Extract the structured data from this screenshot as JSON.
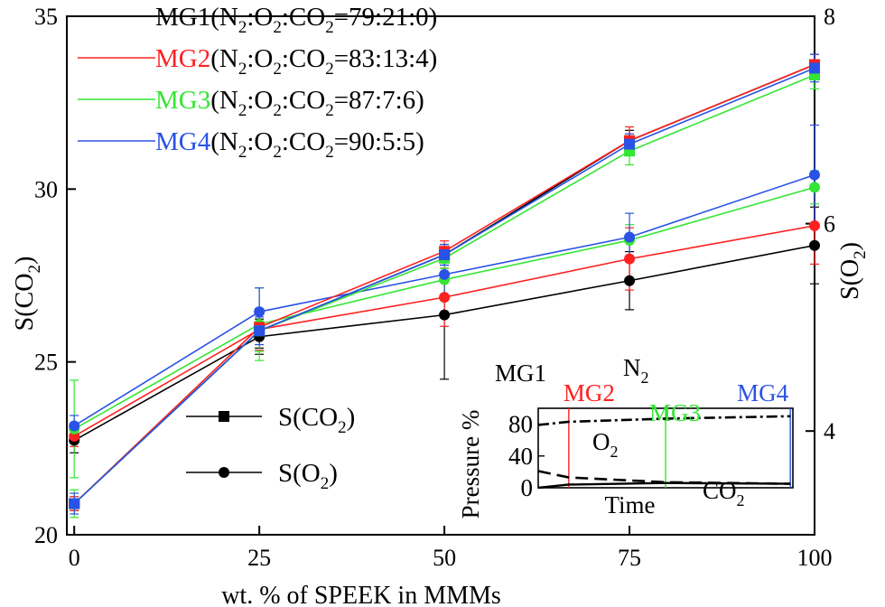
{
  "chart_data": {
    "type": "line",
    "x": [
      0,
      25,
      50,
      75,
      100
    ],
    "xlabel": "wt. % of SPEEK in MMMs",
    "xticks": [
      "0",
      "25",
      "50",
      "75",
      "100"
    ],
    "xlim": [
      -1,
      100
    ],
    "y_left": {
      "label": "S(CO",
      "label_sub": "2",
      "label_end": ")",
      "ylim": [
        20,
        35
      ],
      "ticks": [
        "20",
        "25",
        "30",
        "35"
      ]
    },
    "y_right": {
      "label": "S(O",
      "label_sub": "2",
      "label_end": ")",
      "ylim": [
        3.0,
        8.0
      ],
      "ticks": [
        "4",
        "6",
        "8"
      ]
    },
    "legend_groups": [
      {
        "name": "MG1",
        "rest": "(N",
        "s1": "2",
        "m1": ":O",
        "s2": "2",
        "m2": ":CO",
        "s3": "2",
        "end": "=79:21:0)",
        "color": "#000000"
      },
      {
        "name": "MG2",
        "rest": "(N",
        "s1": "2",
        "m1": ":O",
        "s2": "2",
        "m2": ":CO",
        "s3": "2",
        "end": "=83:13:4)",
        "color": "#ff2020"
      },
      {
        "name": "MG3",
        "rest": "(N",
        "s1": "2",
        "m1": ":O",
        "s2": "2",
        "m2": ":CO",
        "s3": "2",
        "end": "=87:7:6)",
        "color": "#33e633"
      },
      {
        "name": "MG4",
        "rest": "(N",
        "s1": "2",
        "m1": ":O",
        "s2": "2",
        "m2": ":CO",
        "s3": "2",
        "end": "=90:5:5)",
        "color": "#2a52e6"
      }
    ],
    "legend_markers": [
      {
        "label": "S(CO",
        "sub": "2",
        "end": ")",
        "marker": "square"
      },
      {
        "label": "S(O",
        "sub": "2",
        "end": ")",
        "marker": "circle"
      }
    ],
    "series_co2": [
      {
        "group": "MG1",
        "axis": "left",
        "color": "#000000",
        "values": [
          20.9,
          25.9,
          28.1,
          31.4,
          33.6
        ],
        "err": [
          0.2,
          0.5,
          0.3,
          0.3,
          0.3
        ]
      },
      {
        "group": "MG2",
        "axis": "left",
        "color": "#ff2020",
        "values": [
          20.9,
          26.0,
          28.2,
          31.4,
          33.6
        ],
        "err": [
          0.2,
          0.5,
          0.3,
          0.4,
          0.3
        ]
      },
      {
        "group": "MG3",
        "axis": "left",
        "color": "#33e633",
        "values": [
          20.9,
          25.9,
          28.0,
          31.1,
          33.3
        ],
        "err": [
          0.4,
          0.6,
          0.3,
          0.4,
          0.4
        ]
      },
      {
        "group": "MG4",
        "axis": "left",
        "color": "#2a52e6",
        "values": [
          20.9,
          25.9,
          28.1,
          31.3,
          33.5
        ],
        "err": [
          0.3,
          0.4,
          0.3,
          0.3,
          0.4
        ]
      }
    ],
    "series_o2": [
      {
        "group": "MG1",
        "axis": "right",
        "color": "#000000",
        "values": [
          3.91,
          4.91,
          5.12,
          5.45,
          5.79
        ],
        "err": [
          0.12,
          0.17,
          0.62,
          0.28,
          0.37
        ]
      },
      {
        "group": "MG2",
        "axis": "right",
        "color": "#ff2020",
        "values": [
          3.95,
          4.98,
          5.29,
          5.66,
          5.98
        ],
        "err": [
          0.1,
          0.2,
          0.28,
          0.3,
          0.37
        ]
      },
      {
        "group": "MG3",
        "axis": "right",
        "color": "#33e633",
        "values": [
          4.02,
          5.03,
          5.46,
          5.84,
          6.35
        ],
        "err": [
          0.47,
          0.35,
          0.2,
          0.15,
          0.16
        ]
      },
      {
        "group": "MG4",
        "axis": "right",
        "color": "#2a52e6",
        "values": [
          4.05,
          5.15,
          5.51,
          5.87,
          6.47
        ],
        "err": [
          0.1,
          0.23,
          0.24,
          0.23,
          0.48
        ]
      }
    ],
    "inset": {
      "ylabel": "Pressure %",
      "xlabel": "Time",
      "ylim": [
        0,
        100
      ],
      "yticks": [
        "0",
        "40",
        "80"
      ],
      "regions": [
        {
          "label": "MG1",
          "color": "#000000",
          "boundary": 0.0
        },
        {
          "label": "MG2",
          "color": "#ff2020",
          "boundary": 0.12
        },
        {
          "label": "MG3",
          "color": "#33e633",
          "boundary": 0.5
        },
        {
          "label": "MG4",
          "color": "#2a52e6",
          "boundary": 0.99
        }
      ],
      "gases": [
        {
          "label": "N",
          "sub": "2",
          "points": [
            [
              0.0,
              79
            ],
            [
              0.12,
              83
            ],
            [
              0.5,
              87
            ],
            [
              0.99,
              90
            ]
          ]
        },
        {
          "label": "O",
          "sub": "2",
          "points": [
            [
              0.0,
              21
            ],
            [
              0.12,
              13
            ],
            [
              0.5,
              7
            ],
            [
              0.99,
              5
            ]
          ]
        },
        {
          "label": "CO",
          "sub": "2",
          "points": [
            [
              0.0,
              0
            ],
            [
              0.12,
              4
            ],
            [
              0.5,
              6
            ],
            [
              0.99,
              5
            ]
          ]
        }
      ]
    }
  }
}
